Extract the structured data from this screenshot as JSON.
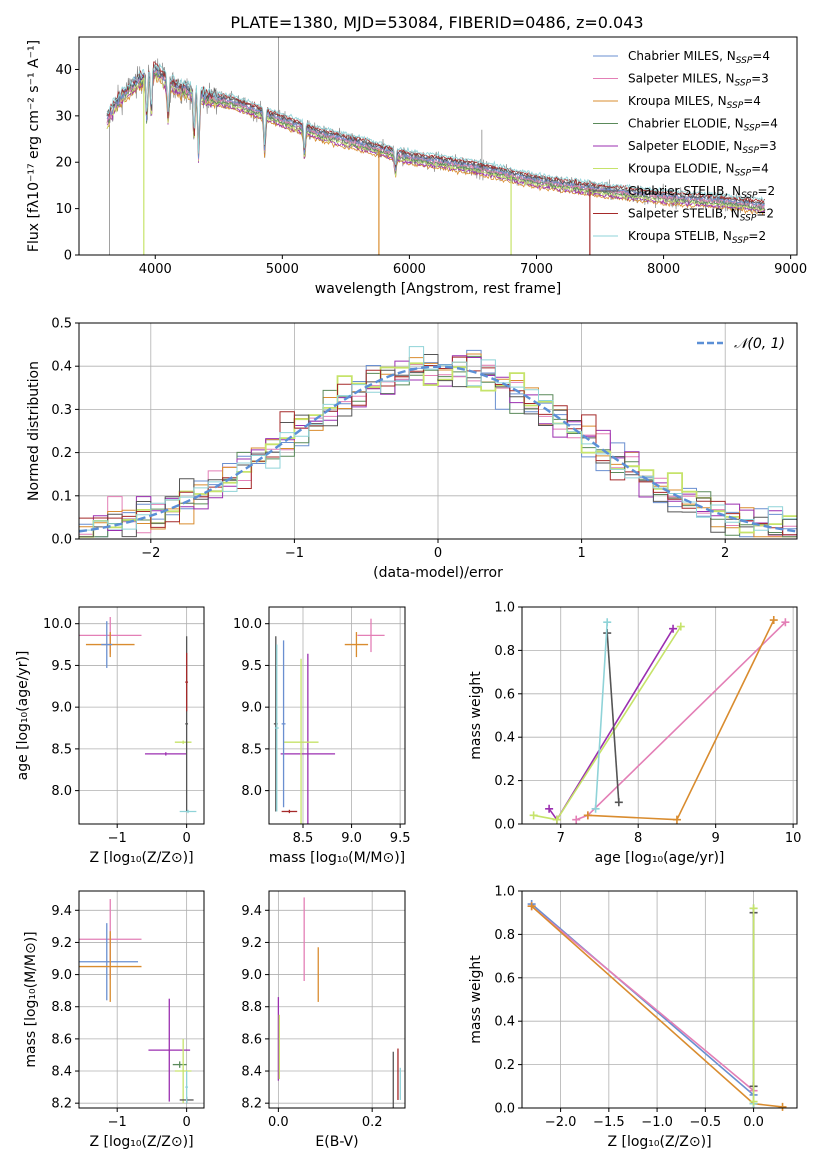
{
  "figure": {
    "title": "PLATE=1380, MJD=53084, FIBERID=0486, z=0.043"
  },
  "colors": {
    "Chabrier MILES": "#6a8fd0",
    "Salpeter MILES": "#e37fb6",
    "Kroupa MILES": "#d98c2f",
    "Chabrier ELODIE": "#5a8a5a",
    "Salpeter ELODIE": "#9b2fb0",
    "Kroupa ELODIE": "#c6e36a",
    "Chabrier STELIB": "#555555",
    "Salpeter STELIB": "#a52a2a",
    "Kroupa STELIB": "#8fd3d8",
    "data": "#8a8a8a",
    "gaussian": "#5b8fd6"
  },
  "chart_data": [
    {
      "id": "spectrum",
      "type": "line",
      "xlabel": "wavelength [Angstrom, rest frame]",
      "ylabel": "Flux [fλ10⁻¹⁷ erg cm⁻² s⁻¹ A⁻¹]",
      "xlim": [
        3400,
        9050
      ],
      "ylim": [
        0,
        47
      ],
      "xticks": [
        4000,
        5000,
        6000,
        7000,
        8000,
        9000
      ],
      "yticks": [
        0,
        10,
        20,
        30,
        40
      ],
      "grid": false,
      "legend_position": "top-right",
      "legend": [
        {
          "series": "Chabrier MILES",
          "label": "Chabrier MILES, N",
          "sub": "SSP",
          "tail": "=4"
        },
        {
          "series": "Salpeter MILES",
          "label": "Salpeter MILES, N",
          "sub": "SSP",
          "tail": "=3"
        },
        {
          "series": "Kroupa MILES",
          "label": "Kroupa MILES, N",
          "sub": "SSP",
          "tail": "=4"
        },
        {
          "series": "Chabrier ELODIE",
          "label": "Chabrier ELODIE, N",
          "sub": "SSP",
          "tail": "=4"
        },
        {
          "series": "Salpeter ELODIE",
          "label": "Salpeter ELODIE, N",
          "sub": "SSP",
          "tail": "=3"
        },
        {
          "series": "Kroupa ELODIE",
          "label": "Kroupa ELODIE, N",
          "sub": "SSP",
          "tail": "=4"
        },
        {
          "series": "Chabrier STELIB",
          "label": "Chabrier STELIB, N",
          "sub": "SSP",
          "tail": "=2"
        },
        {
          "series": "Salpeter STELIB",
          "label": "Salpeter STELIB, N",
          "sub": "SSP",
          "tail": "=2"
        },
        {
          "series": "Kroupa STELIB",
          "label": "Kroupa STELIB, N",
          "sub": "SSP",
          "tail": "=2"
        }
      ],
      "continuum": {
        "x": [
          3620,
          3700,
          3800,
          3900,
          4000,
          4100,
          4200,
          4400,
          4600,
          4800,
          5000,
          5300,
          5600,
          6000,
          6500,
          7000,
          7500,
          8000,
          8500,
          8800
        ],
        "y": [
          29,
          33,
          36,
          38,
          40,
          37,
          36,
          34,
          33,
          31,
          29,
          26,
          24,
          21,
          19,
          16,
          14,
          12.5,
          11.5,
          10.5
        ]
      },
      "absorption_lines": [
        {
          "x": 3934,
          "depth": 10
        },
        {
          "x": 3969,
          "depth": 9
        },
        {
          "x": 4102,
          "depth": 8
        },
        {
          "x": 4305,
          "depth": 10
        },
        {
          "x": 4341,
          "depth": 14
        },
        {
          "x": 4861,
          "depth": 8
        },
        {
          "x": 5175,
          "depth": 6
        },
        {
          "x": 5890,
          "depth": 4
        }
      ],
      "dropouts": [
        {
          "series": "Kroupa ELODIE",
          "x": 3910
        },
        {
          "series": "Kroupa MILES",
          "x": 5760
        },
        {
          "series": "Kroupa ELODIE",
          "x": 6800
        },
        {
          "series": "Salpeter STELIB",
          "x": 7420
        }
      ],
      "data_spikes": [
        {
          "x": 3640,
          "y": 30
        },
        {
          "x": 4970,
          "y": 47
        },
        {
          "x": 6570,
          "y": 27
        }
      ]
    },
    {
      "id": "residuals",
      "type": "step",
      "xlabel": "(data-model)/error",
      "ylabel": "Normed distribution",
      "xlim": [
        -2.5,
        2.5
      ],
      "ylim": [
        0,
        0.5
      ],
      "xticks": [
        -2,
        -1,
        0,
        1,
        2
      ],
      "yticks": [
        0.0,
        0.1,
        0.2,
        0.3,
        0.4,
        0.5
      ],
      "grid": true,
      "legend_position": "top-right",
      "gaussian_label": "𝒩(0, 1)",
      "bin_width": 0.1
    },
    {
      "id": "age-vs-Z",
      "type": "errorbar",
      "xlabel": "Z [log₁₀(Z/Z⊙)]",
      "ylabel": "age  [log₁₀(age/yr)]",
      "xlim": [
        -1.55,
        0.25
      ],
      "ylim": [
        7.6,
        10.2
      ],
      "xticks": [
        -1,
        0
      ],
      "yticks": [
        8.0,
        8.5,
        9.0,
        9.5,
        10.0
      ],
      "grid": true,
      "points": [
        {
          "series": "Salpeter MILES",
          "x": -1.1,
          "xerr": 0.45,
          "y": 9.86,
          "yerr": 0.22
        },
        {
          "series": "Kroupa MILES",
          "x": -1.1,
          "xerr": 0.35,
          "y": 9.75,
          "yerr": 0.15
        },
        {
          "series": "Chabrier MILES",
          "x": -1.15,
          "xerr": 0.08,
          "y": 9.75,
          "yerr": 0.28
        },
        {
          "series": "Salpeter ELODIE",
          "x": -0.3,
          "xerr": 0.3,
          "y": 8.44,
          "yerr": 0.02
        },
        {
          "series": "Kroupa ELODIE",
          "x": -0.05,
          "xerr": 0.12,
          "y": 8.58,
          "yerr": 0.02
        },
        {
          "series": "Chabrier STELIB",
          "x": 0.0,
          "xerr": 0.02,
          "y": 8.8,
          "yerr": 1.05
        },
        {
          "series": "Kroupa STELIB",
          "x": 0.02,
          "xerr": 0.12,
          "y": 7.75,
          "yerr": 0.02
        },
        {
          "series": "Salpeter STELIB",
          "x": 0.0,
          "xerr": 0.02,
          "y": 9.3,
          "yerr": 0.35
        }
      ]
    },
    {
      "id": "age-vs-mass",
      "type": "errorbar",
      "xlabel": "mass [log₁₀(M/M⊙)]",
      "ylabel": "",
      "xlim": [
        8.15,
        9.55
      ],
      "ylim": [
        7.6,
        10.2
      ],
      "xticks": [
        8.5,
        9.0,
        9.5
      ],
      "yticks": [
        8.0,
        8.5,
        9.0,
        9.5,
        10.0
      ],
      "grid": true,
      "points": [
        {
          "series": "Salpeter MILES",
          "x": 9.2,
          "xerr": 0.14,
          "y": 9.86,
          "yerr": 0.2
        },
        {
          "series": "Kroupa MILES",
          "x": 9.05,
          "xerr": 0.12,
          "y": 9.75,
          "yerr": 0.15
        },
        {
          "series": "Salpeter ELODIE",
          "x": 8.55,
          "xerr": 0.28,
          "y": 8.44,
          "yerr": 1.2
        },
        {
          "series": "Kroupa ELODIE",
          "x": 8.48,
          "xerr": 0.18,
          "y": 8.58,
          "yerr": 1.0
        },
        {
          "series": "Chabrier STELIB",
          "x": 8.22,
          "xerr": 0.02,
          "y": 8.8,
          "yerr": 1.05
        },
        {
          "series": "Kroupa STELIB",
          "x": 8.23,
          "xerr": 0.02,
          "y": 8.75,
          "yerr": 1.0
        },
        {
          "series": "Salpeter STELIB",
          "x": 8.36,
          "xerr": 0.08,
          "y": 7.75,
          "yerr": 0.02
        },
        {
          "series": "Chabrier MILES",
          "x": 8.3,
          "xerr": 0.02,
          "y": 8.8,
          "yerr": 1.0
        }
      ]
    },
    {
      "id": "massweight-vs-age",
      "type": "line",
      "xlabel": "age  [log₁₀(age/yr)]",
      "ylabel": "mass weight",
      "xlim": [
        6.5,
        10.05
      ],
      "ylim": [
        0,
        1
      ],
      "xticks": [
        7,
        8,
        9,
        10
      ],
      "yticks": [
        0.0,
        0.2,
        0.4,
        0.6,
        0.8,
        1.0
      ],
      "grid": true,
      "series": [
        {
          "name": "Salpeter ELODIE",
          "x": [
            6.85,
            6.95,
            8.45
          ],
          "y": [
            0.07,
            0.02,
            0.9
          ]
        },
        {
          "name": "Kroupa ELODIE",
          "x": [
            6.65,
            6.95,
            8.55
          ],
          "y": [
            0.04,
            0.02,
            0.91
          ]
        },
        {
          "name": "Salpeter MILES",
          "x": [
            7.2,
            7.35,
            9.9
          ],
          "y": [
            0.02,
            0.04,
            0.93
          ]
        },
        {
          "name": "Kroupa MILES",
          "x": [
            7.35,
            8.5,
            9.75
          ],
          "y": [
            0.04,
            0.02,
            0.94
          ]
        },
        {
          "name": "Chabrier STELIB",
          "x": [
            7.6,
            7.75
          ],
          "y": [
            0.88,
            0.1
          ]
        },
        {
          "name": "Kroupa STELIB",
          "x": [
            7.45,
            7.6
          ],
          "y": [
            0.07,
            0.93
          ]
        }
      ]
    },
    {
      "id": "mass-vs-Z",
      "type": "errorbar",
      "xlabel": "Z [log₁₀(Z/Z⊙)]",
      "ylabel": "mass [log₁₀(M/M⊙)]",
      "xlim": [
        -1.55,
        0.25
      ],
      "ylim": [
        8.17,
        9.52
      ],
      "xticks": [
        -1,
        0
      ],
      "yticks": [
        8.2,
        8.4,
        8.6,
        8.8,
        9.0,
        9.2,
        9.4
      ],
      "grid": true,
      "points": [
        {
          "series": "Salpeter MILES",
          "x": -1.1,
          "xerr": 0.45,
          "y": 9.22,
          "yerr": 0.25
        },
        {
          "series": "Chabrier MILES",
          "x": -1.15,
          "xerr": 0.45,
          "y": 9.08,
          "yerr": 0.24
        },
        {
          "series": "Kroupa MILES",
          "x": -1.1,
          "xerr": 0.45,
          "y": 9.05,
          "yerr": 0.22
        },
        {
          "series": "Salpeter ELODIE",
          "x": -0.25,
          "xerr": 0.3,
          "y": 8.53,
          "yerr": 0.32
        },
        {
          "series": "Chabrier ELODIE",
          "x": -0.1,
          "xerr": 0.1,
          "y": 8.44,
          "yerr": 0.02
        },
        {
          "series": "Kroupa ELODIE",
          "x": -0.05,
          "xerr": 0.12,
          "y": 8.4,
          "yerr": 0.2
        },
        {
          "series": "Chabrier STELIB",
          "x": 0.0,
          "xerr": 0.1,
          "y": 8.22,
          "yerr": 0.02
        },
        {
          "series": "Kroupa STELIB",
          "x": 0.0,
          "xerr": 0.02,
          "y": 8.3,
          "yerr": 0.1
        }
      ]
    },
    {
      "id": "mass-vs-EBV",
      "type": "errorbar",
      "xlabel": "E(B-V)",
      "ylabel": "",
      "xlim": [
        -0.02,
        0.27
      ],
      "ylim": [
        8.17,
        9.52
      ],
      "xticks": [
        0.0,
        0.2
      ],
      "yticks": [
        8.2,
        8.4,
        8.6,
        8.8,
        9.0,
        9.2,
        9.4
      ],
      "grid": true,
      "points": [
        {
          "series": "Salpeter MILES",
          "x": 0.055,
          "y": 9.22,
          "yerr": 0.26
        },
        {
          "series": "Kroupa MILES",
          "x": 0.085,
          "y": 9.0,
          "yerr": 0.17
        },
        {
          "series": "Salpeter ELODIE",
          "x": 0.0,
          "y": 8.6,
          "yerr": 0.26
        },
        {
          "series": "Kroupa ELODIE",
          "x": 0.002,
          "y": 8.55,
          "yerr": 0.2
        },
        {
          "series": "Chabrier STELIB",
          "x": 0.245,
          "y": 8.34,
          "yerr": 0.18
        },
        {
          "series": "Salpeter STELIB",
          "x": 0.255,
          "y": 8.38,
          "yerr": 0.16
        },
        {
          "series": "Kroupa STELIB",
          "x": 0.26,
          "y": 8.32,
          "yerr": 0.1
        }
      ]
    },
    {
      "id": "massweight-vs-Z",
      "type": "line",
      "xlabel": "Z [log₁₀(Z/Z⊙)]",
      "ylabel": "mass weight",
      "xlim": [
        -2.4,
        0.45
      ],
      "ylim": [
        0,
        1
      ],
      "xticks": [
        -2.0,
        -1.5,
        -1.0,
        -0.5,
        0.0
      ],
      "yticks": [
        0.0,
        0.2,
        0.4,
        0.6,
        0.8,
        1.0
      ],
      "grid": true,
      "series": [
        {
          "name": "Chabrier MILES",
          "x": [
            -2.3,
            0.0
          ],
          "y": [
            0.94,
            0.06
          ]
        },
        {
          "name": "Salpeter MILES",
          "x": [
            -2.3,
            0.0
          ],
          "y": [
            0.93,
            0.08
          ]
        },
        {
          "name": "Kroupa MILES",
          "x": [
            -2.3,
            0.0,
            0.3
          ],
          "y": [
            0.93,
            0.02,
            0.005
          ]
        },
        {
          "name": "Kroupa STELIB",
          "x": [
            0.0,
            0.0
          ],
          "y": [
            0.02,
            0.92
          ]
        },
        {
          "name": "Chabrier STELIB",
          "x": [
            0.0,
            0.0
          ],
          "y": [
            0.1,
            0.9
          ]
        },
        {
          "name": "Kroupa ELODIE",
          "x": [
            0.0,
            0.0
          ],
          "y": [
            0.03,
            0.92
          ]
        }
      ]
    }
  ]
}
